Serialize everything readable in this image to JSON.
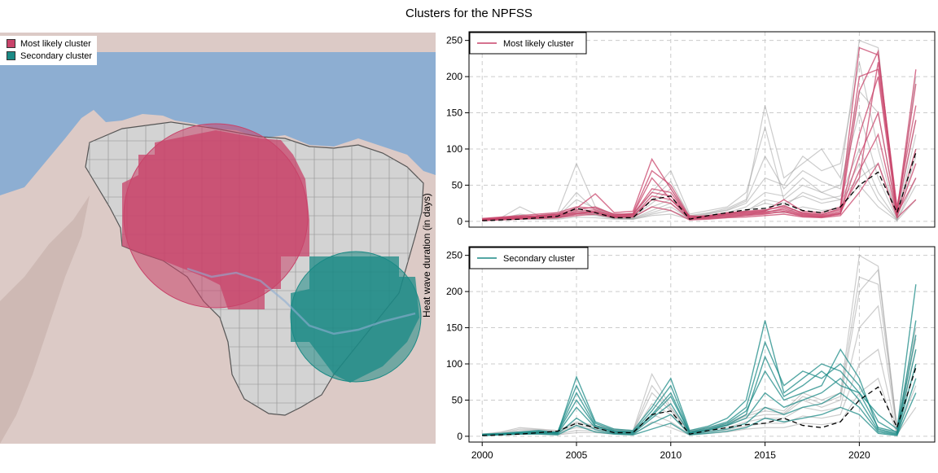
{
  "title": "Clusters for the NPFSS",
  "colors": {
    "most_likely": "#c8436a",
    "secondary": "#1b8a85",
    "ocean": "#8daed2",
    "land": "#dccac6",
    "grid_cell": "#d3d3d3",
    "background_lines": "#9a9a9a",
    "mean_line": "#000000"
  },
  "map": {
    "legend": [
      {
        "label": "Most likely cluster",
        "color": "#c8436a"
      },
      {
        "label": "Secondary cluster",
        "color": "#1b8a85"
      }
    ]
  },
  "chart_data": [
    {
      "type": "line",
      "panel": "top",
      "legend": "Most likely cluster",
      "legend_position": "top-left",
      "ylabel": "Heat wave duration (in days)",
      "xlim": [
        1999.3,
        2024.0
      ],
      "ylim": [
        -8,
        262
      ],
      "xticks": [
        2000,
        2005,
        2010,
        2015,
        2020
      ],
      "yticks": [
        0,
        50,
        100,
        150,
        200,
        250
      ],
      "grid": true,
      "x": [
        2000,
        2001,
        2002,
        2003,
        2004,
        2005,
        2006,
        2007,
        2008,
        2009,
        2010,
        2011,
        2012,
        2013,
        2014,
        2015,
        2016,
        2017,
        2018,
        2019,
        2020,
        2021,
        2022,
        2023
      ],
      "series": [
        {
          "name": "Most likely cluster",
          "role": "highlight",
          "values": [
            4,
            6,
            8,
            10,
            12,
            20,
            18,
            10,
            10,
            40,
            35,
            6,
            8,
            12,
            14,
            16,
            20,
            12,
            10,
            16,
            60,
            220,
            15,
            140
          ]
        },
        {
          "name": "Most likely cluster",
          "role": "highlight",
          "values": [
            2,
            4,
            6,
            8,
            10,
            18,
            38,
            12,
            14,
            86,
            45,
            4,
            6,
            10,
            12,
            14,
            30,
            14,
            12,
            20,
            240,
            230,
            20,
            160
          ]
        },
        {
          "name": "Most likely cluster",
          "role": "highlight",
          "values": [
            3,
            5,
            7,
            6,
            8,
            14,
            16,
            8,
            10,
            60,
            30,
            8,
            6,
            8,
            10,
            12,
            18,
            10,
            8,
            14,
            180,
            235,
            12,
            190
          ]
        },
        {
          "name": "Most likely cluster",
          "role": "highlight",
          "values": [
            1,
            3,
            4,
            5,
            6,
            10,
            12,
            6,
            8,
            30,
            25,
            3,
            4,
            6,
            8,
            10,
            14,
            8,
            6,
            10,
            120,
            200,
            8,
            100
          ]
        },
        {
          "name": "Most likely cluster",
          "role": "highlight",
          "values": [
            2,
            3,
            5,
            7,
            9,
            12,
            14,
            7,
            9,
            45,
            40,
            5,
            7,
            9,
            11,
            13,
            16,
            9,
            7,
            12,
            90,
            150,
            10,
            60
          ]
        },
        {
          "name": "Most likely cluster",
          "role": "highlight",
          "values": [
            1,
            2,
            3,
            4,
            5,
            8,
            10,
            5,
            6,
            20,
            15,
            2,
            3,
            5,
            6,
            8,
            10,
            6,
            5,
            8,
            40,
            80,
            5,
            30
          ]
        },
        {
          "name": "Most likely cluster",
          "role": "highlight",
          "values": [
            3,
            5,
            6,
            8,
            10,
            16,
            20,
            9,
            11,
            70,
            50,
            6,
            8,
            11,
            13,
            15,
            22,
            11,
            9,
            18,
            200,
            210,
            14,
            210
          ]
        },
        {
          "name": "Most likely cluster",
          "role": "highlight",
          "values": [
            2,
            3,
            4,
            6,
            7,
            11,
            13,
            6,
            7,
            35,
            30,
            4,
            5,
            7,
            9,
            11,
            13,
            7,
            6,
            11,
            70,
            120,
            7,
            80
          ]
        },
        {
          "name": "Other cells",
          "role": "background",
          "values": [
            3,
            5,
            20,
            8,
            12,
            80,
            20,
            10,
            8,
            40,
            70,
            10,
            15,
            20,
            40,
            130,
            30,
            50,
            40,
            30,
            60,
            80,
            10,
            100
          ]
        },
        {
          "name": "Other cells",
          "role": "background",
          "values": [
            2,
            4,
            10,
            6,
            8,
            40,
            15,
            8,
            6,
            30,
            55,
            8,
            12,
            18,
            30,
            160,
            60,
            80,
            100,
            60,
            250,
            240,
            5,
            200
          ]
        },
        {
          "name": "Other cells",
          "role": "background",
          "values": [
            1,
            3,
            6,
            5,
            6,
            20,
            12,
            6,
            5,
            20,
            30,
            6,
            10,
            15,
            25,
            60,
            50,
            90,
            70,
            80,
            220,
            100,
            5,
            120
          ]
        },
        {
          "name": "Other cells",
          "role": "background",
          "values": [
            2,
            3,
            5,
            4,
            5,
            15,
            10,
            5,
            4,
            15,
            25,
            5,
            8,
            12,
            20,
            40,
            35,
            60,
            40,
            50,
            150,
            60,
            3,
            90
          ]
        },
        {
          "name": "Other cells",
          "role": "background",
          "values": [
            1,
            2,
            4,
            3,
            4,
            10,
            8,
            4,
            3,
            10,
            15,
            4,
            6,
            10,
            15,
            25,
            20,
            40,
            30,
            35,
            100,
            40,
            2,
            60
          ]
        },
        {
          "name": "Other cells",
          "role": "background",
          "values": [
            3,
            4,
            8,
            6,
            7,
            30,
            18,
            7,
            6,
            25,
            45,
            7,
            11,
            16,
            28,
            90,
            45,
            70,
            55,
            45,
            180,
            150,
            8,
            140
          ]
        },
        {
          "name": "Other cells",
          "role": "background",
          "values": [
            2,
            3,
            5,
            4,
            5,
            12,
            9,
            4,
            4,
            12,
            20,
            4,
            7,
            9,
            14,
            30,
            25,
            35,
            25,
            30,
            80,
            30,
            2,
            50
          ]
        },
        {
          "name": "Other cells",
          "role": "background",
          "values": [
            1,
            2,
            3,
            3,
            3,
            6,
            5,
            3,
            3,
            8,
            10,
            3,
            4,
            6,
            8,
            15,
            12,
            20,
            15,
            18,
            50,
            20,
            1,
            30
          ]
        },
        {
          "name": "Mean",
          "role": "mean",
          "values": [
            1,
            2,
            3,
            5,
            7,
            18,
            12,
            5,
            5,
            30,
            35,
            3,
            8,
            12,
            16,
            18,
            25,
            15,
            12,
            20,
            50,
            68,
            12,
            95
          ]
        }
      ]
    },
    {
      "type": "line",
      "panel": "bottom",
      "legend": "Secondary cluster",
      "legend_position": "top-left",
      "ylabel": "Heat wave duration (in days)",
      "xlim": [
        1999.3,
        2024.0
      ],
      "ylim": [
        -8,
        262
      ],
      "xticks": [
        2000,
        2005,
        2010,
        2015,
        2020
      ],
      "yticks": [
        0,
        50,
        100,
        150,
        200,
        250
      ],
      "grid": true,
      "x": [
        2000,
        2001,
        2002,
        2003,
        2004,
        2005,
        2006,
        2007,
        2008,
        2009,
        2010,
        2011,
        2012,
        2013,
        2014,
        2015,
        2016,
        2017,
        2018,
        2019,
        2020,
        2021,
        2022,
        2023
      ],
      "series": [
        {
          "name": "Secondary cluster",
          "role": "highlight",
          "values": [
            2,
            3,
            5,
            6,
            4,
            82,
            20,
            10,
            8,
            40,
            80,
            8,
            14,
            25,
            50,
            160,
            60,
            80,
            100,
            90,
            60,
            30,
            10,
            210
          ]
        },
        {
          "name": "Secondary cluster",
          "role": "highlight",
          "values": [
            1,
            3,
            4,
            5,
            6,
            70,
            18,
            8,
            6,
            35,
            70,
            6,
            12,
            20,
            40,
            130,
            70,
            90,
            80,
            100,
            70,
            20,
            5,
            160
          ]
        },
        {
          "name": "Secondary cluster",
          "role": "highlight",
          "values": [
            3,
            4,
            6,
            8,
            5,
            60,
            15,
            6,
            5,
            30,
            60,
            5,
            10,
            18,
            35,
            90,
            50,
            60,
            70,
            120,
            80,
            10,
            4,
            120
          ]
        },
        {
          "name": "Secondary cluster",
          "role": "highlight",
          "values": [
            2,
            3,
            4,
            5,
            4,
            40,
            12,
            5,
            4,
            25,
            45,
            4,
            8,
            15,
            25,
            60,
            40,
            50,
            60,
            80,
            50,
            8,
            3,
            100
          ]
        },
        {
          "name": "Secondary cluster",
          "role": "highlight",
          "values": [
            1,
            2,
            3,
            4,
            3,
            25,
            9,
            4,
            3,
            18,
            30,
            3,
            6,
            10,
            18,
            40,
            30,
            40,
            45,
            60,
            40,
            6,
            2,
            80
          ]
        },
        {
          "name": "Secondary cluster",
          "role": "highlight",
          "values": [
            2,
            3,
            5,
            7,
            5,
            50,
            14,
            7,
            6,
            28,
            55,
            5,
            9,
            16,
            30,
            110,
            55,
            70,
            90,
            70,
            60,
            12,
            6,
            140
          ]
        },
        {
          "name": "Secondary cluster",
          "role": "highlight",
          "values": [
            1,
            2,
            3,
            3,
            2,
            15,
            6,
            3,
            2,
            10,
            18,
            2,
            4,
            7,
            12,
            25,
            20,
            25,
            30,
            40,
            30,
            4,
            1,
            60
          ]
        },
        {
          "name": "Other cells",
          "role": "background",
          "values": [
            3,
            6,
            12,
            10,
            8,
            20,
            15,
            10,
            8,
            86,
            40,
            8,
            12,
            18,
            30,
            40,
            35,
            60,
            50,
            60,
            250,
            235,
            12,
            150
          ]
        },
        {
          "name": "Other cells",
          "role": "background",
          "values": [
            2,
            4,
            8,
            8,
            6,
            15,
            12,
            8,
            6,
            60,
            35,
            6,
            10,
            15,
            25,
            30,
            30,
            50,
            40,
            50,
            200,
            230,
            10,
            120
          ]
        },
        {
          "name": "Other cells",
          "role": "background",
          "values": [
            2,
            3,
            6,
            6,
            5,
            12,
            10,
            6,
            5,
            45,
            30,
            5,
            8,
            12,
            20,
            25,
            25,
            40,
            35,
            40,
            150,
            180,
            8,
            100
          ]
        },
        {
          "name": "Other cells",
          "role": "background",
          "values": [
            1,
            2,
            4,
            4,
            3,
            8,
            7,
            4,
            3,
            30,
            20,
            3,
            6,
            9,
            14,
            18,
            18,
            28,
            25,
            30,
            100,
            120,
            5,
            70
          ]
        },
        {
          "name": "Other cells",
          "role": "background",
          "values": [
            1,
            2,
            3,
            3,
            2,
            5,
            5,
            3,
            2,
            20,
            12,
            2,
            4,
            6,
            10,
            12,
            12,
            18,
            16,
            20,
            60,
            80,
            3,
            40
          ]
        },
        {
          "name": "Other cells",
          "role": "background",
          "values": [
            2,
            5,
            10,
            9,
            7,
            18,
            14,
            9,
            7,
            70,
            38,
            7,
            11,
            16,
            28,
            35,
            32,
            55,
            45,
            55,
            220,
            210,
            11,
            135
          ]
        },
        {
          "name": "Mean",
          "role": "mean",
          "values": [
            1,
            2,
            3,
            5,
            7,
            18,
            12,
            5,
            5,
            30,
            35,
            3,
            8,
            12,
            16,
            18,
            25,
            15,
            12,
            20,
            50,
            68,
            12,
            95
          ]
        }
      ]
    }
  ]
}
